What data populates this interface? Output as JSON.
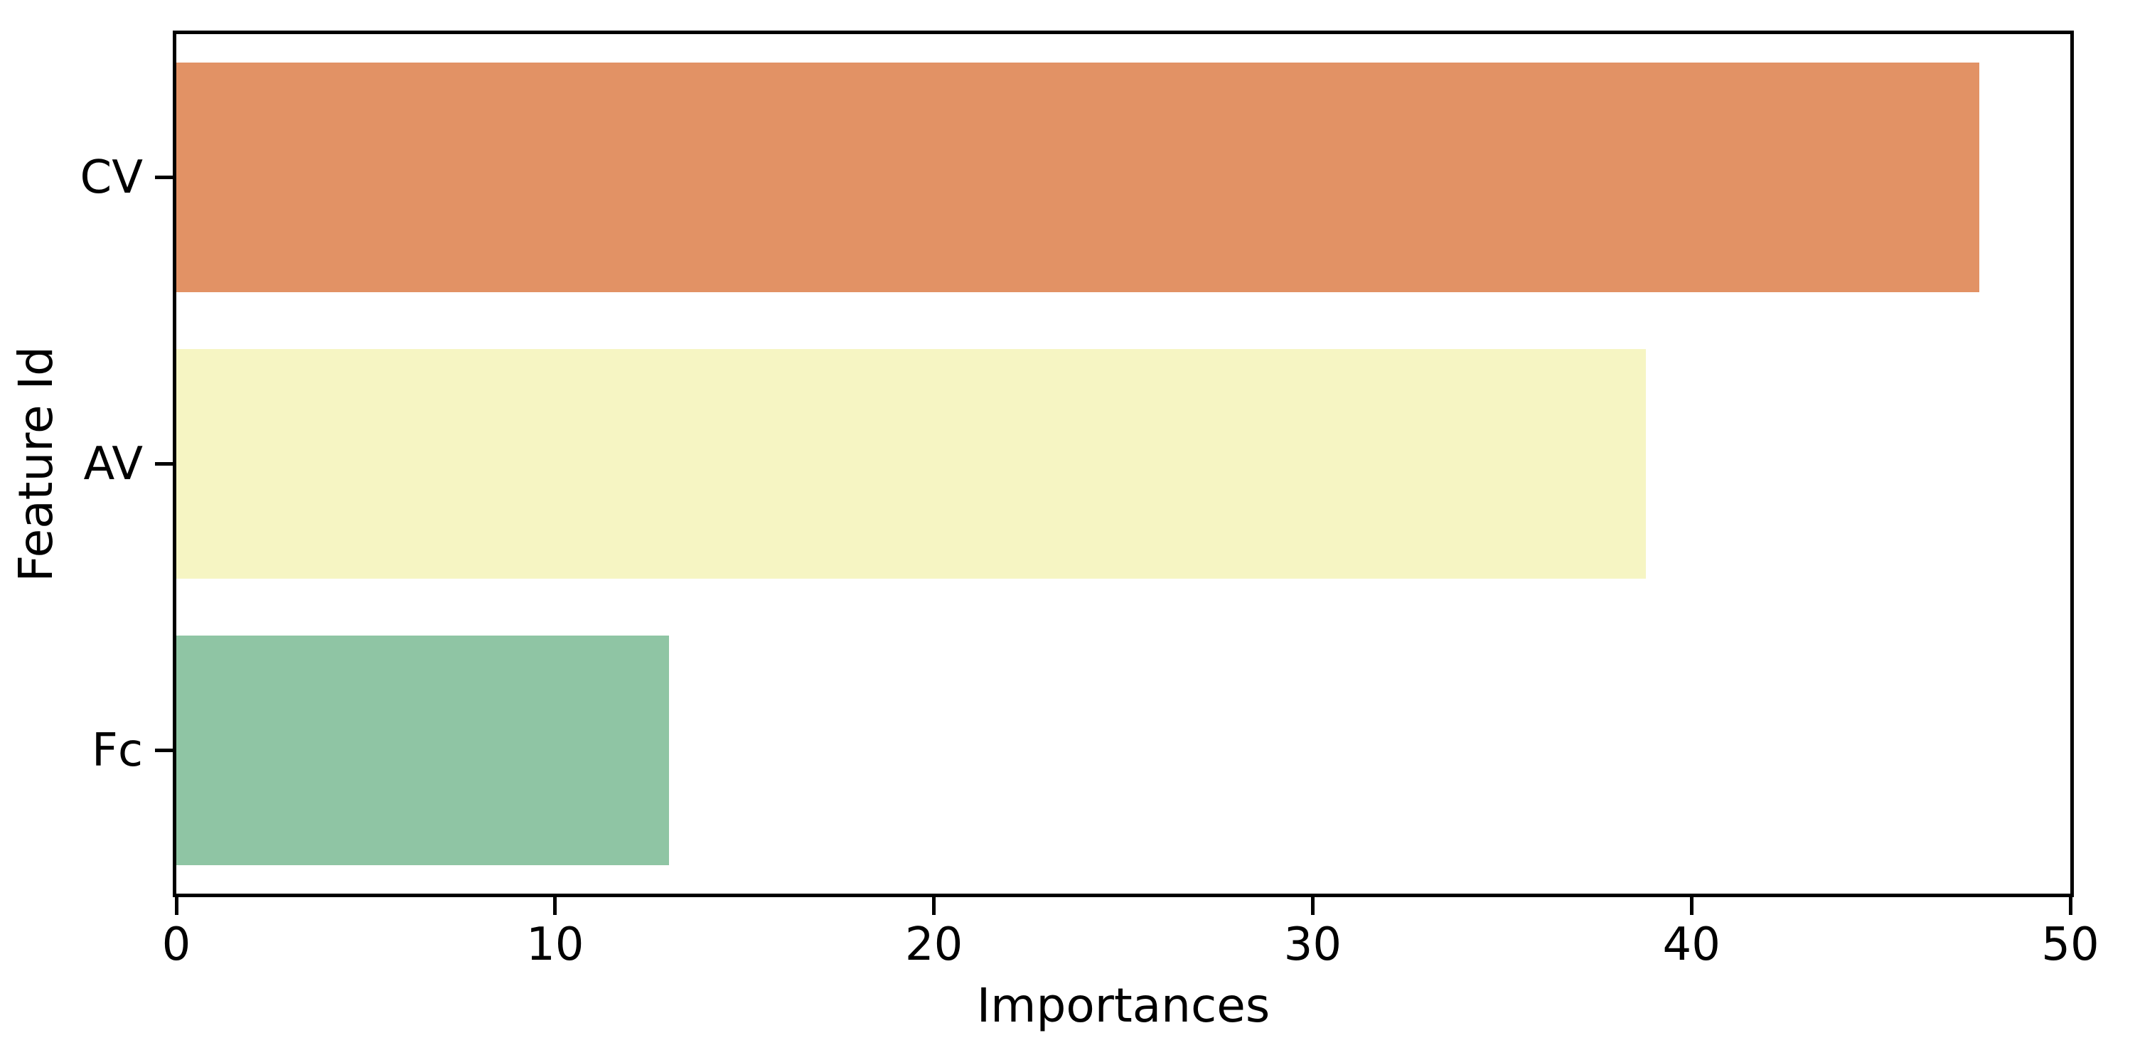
{
  "chart_data": {
    "type": "bar",
    "orientation": "horizontal",
    "xlabel": "Importances",
    "ylabel": "Feature Id",
    "categories": [
      "CV",
      "AV",
      "Fc"
    ],
    "values": [
      47.6,
      38.8,
      13.0
    ],
    "bar_colors": [
      "#e29265",
      "#f6f5c3",
      "#8fc5a4"
    ],
    "xlim": [
      0,
      50
    ],
    "x_ticks": [
      0,
      10,
      20,
      30,
      40,
      50
    ],
    "bar_height_fraction": 0.8,
    "grid": false,
    "background": "#ffffff",
    "axis_color": "#000000"
  }
}
